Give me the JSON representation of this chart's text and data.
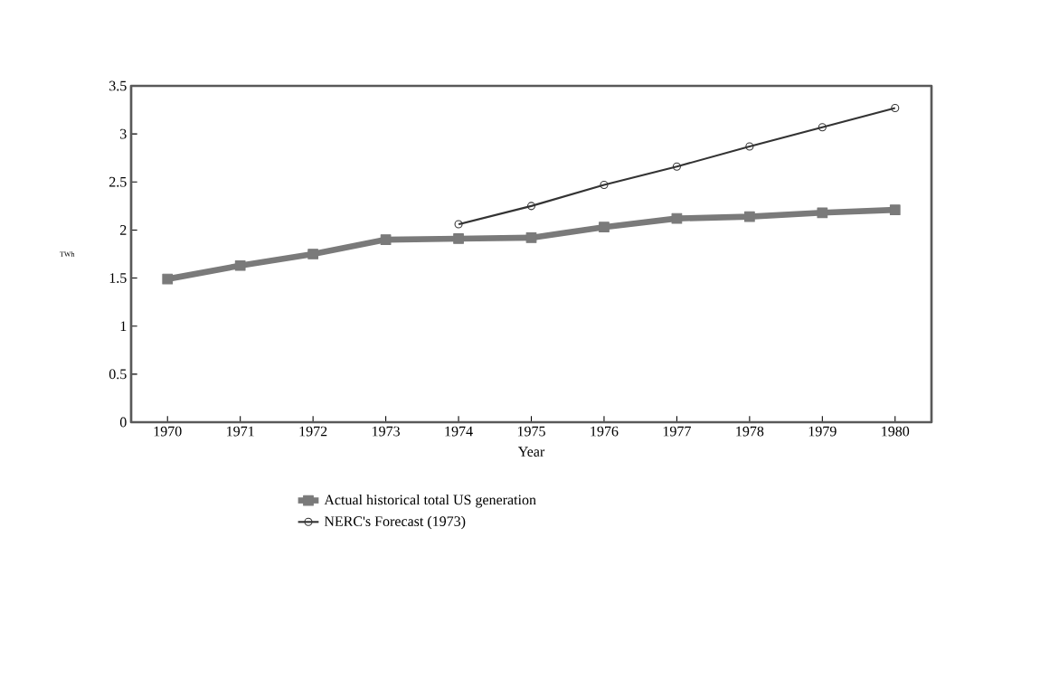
{
  "chart_data": {
    "type": "line",
    "xlabel": "Year",
    "ylabel": "TWh",
    "categories": [
      "1970",
      "1971",
      "1972",
      "1973",
      "1974",
      "1975",
      "1976",
      "1977",
      "1978",
      "1979",
      "1980"
    ],
    "series": [
      {
        "name": "Actual historical total US generation",
        "color": "#7a7a7a",
        "marker": "square",
        "values": [
          1.49,
          1.63,
          1.75,
          1.9,
          1.91,
          1.92,
          2.03,
          2.12,
          2.14,
          2.18,
          2.21
        ]
      },
      {
        "name": "NERC's Forecast (1973)",
        "color": "#333333",
        "marker": "circle",
        "values": [
          null,
          null,
          null,
          null,
          2.06,
          2.25,
          2.47,
          2.66,
          2.87,
          3.07,
          3.27
        ]
      }
    ],
    "ylim": [
      0,
      3.5
    ],
    "yticks": [
      0,
      0.5,
      1,
      1.5,
      2,
      2.5,
      3,
      3.5
    ],
    "grid": false,
    "legend": "bottom",
    "line_style": "solid"
  }
}
